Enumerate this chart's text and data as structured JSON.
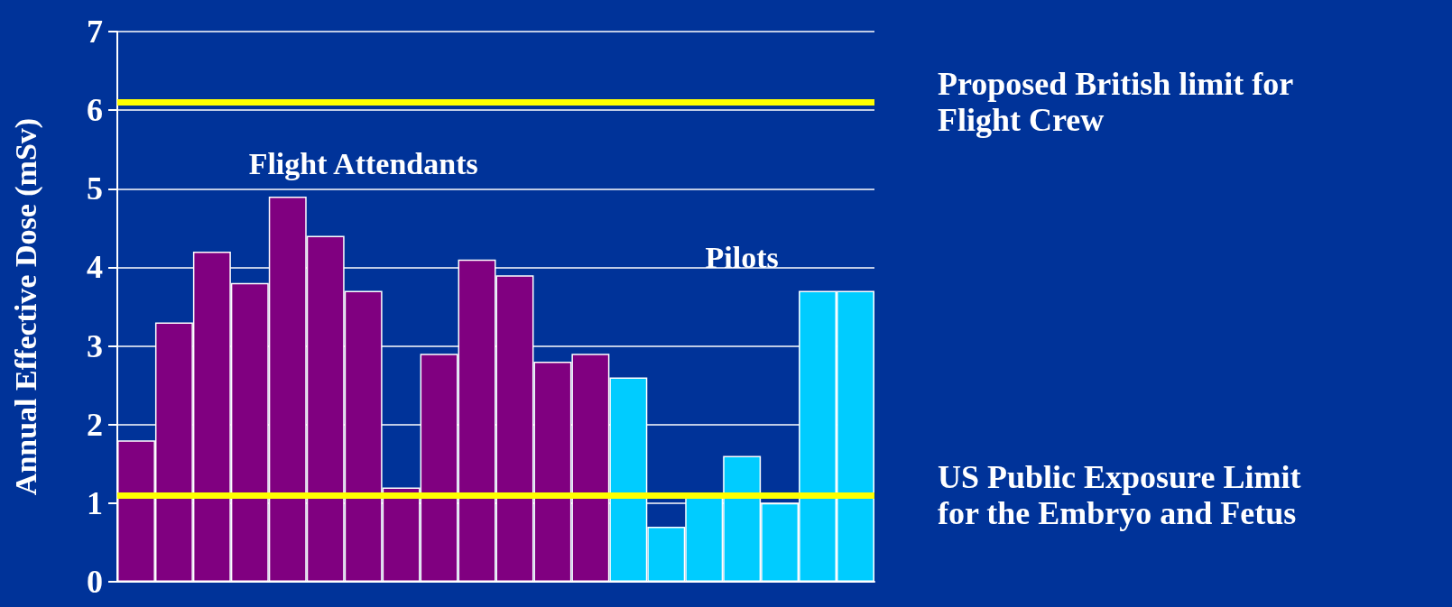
{
  "chart_data": {
    "type": "bar",
    "ylabel": "Annual Effective Dose (mSv)",
    "categories": [
      null,
      null,
      null,
      null,
      null,
      null,
      null,
      null,
      null,
      null,
      null,
      null,
      null,
      null,
      null,
      null,
      null,
      null,
      null,
      null
    ],
    "series": [
      {
        "name": "Flight Attendants",
        "color": "#800080",
        "values": [
          1.8,
          3.3,
          4.2,
          3.8,
          4.9,
          4.4,
          3.7,
          1.2,
          2.9,
          4.1,
          3.9,
          2.8,
          2.9,
          null,
          null,
          null,
          null,
          null,
          null,
          null
        ]
      },
      {
        "name": "Pilots",
        "color": "#00ccff",
        "values": [
          null,
          null,
          null,
          null,
          null,
          null,
          null,
          null,
          null,
          null,
          null,
          null,
          null,
          2.6,
          0.7,
          1.1,
          1.6,
          1.0,
          3.7,
          3.7
        ]
      }
    ],
    "ylim": [
      0,
      7
    ],
    "yticks": [
      0,
      1,
      2,
      3,
      4,
      5,
      6,
      7
    ],
    "grid": "y",
    "ref_lines": [
      {
        "axis": "y",
        "value": 6.1,
        "label": "Proposed British limit for Flight Crew",
        "color": "#ffff00"
      },
      {
        "axis": "y",
        "value": 1.1,
        "label": "US Public Exposure Limit for the Embryo and Fetus",
        "color": "#ffff00"
      }
    ]
  }
}
